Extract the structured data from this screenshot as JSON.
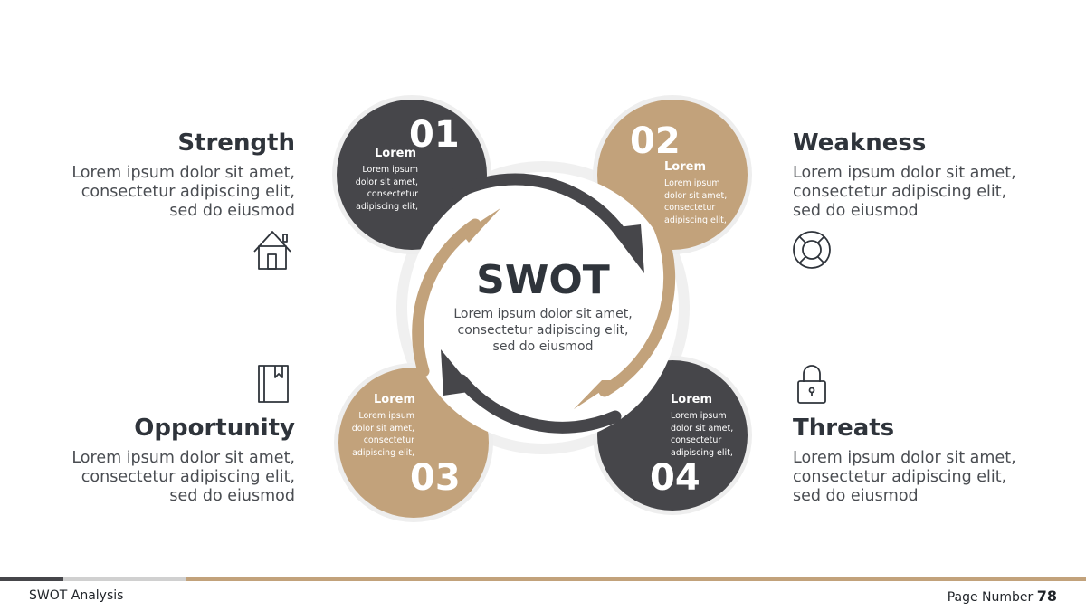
{
  "center": {
    "title": "SWOT",
    "lines": [
      "Lorem ipsum dolor sit amet,",
      "consectetur adipiscing elit,",
      "sed do eiusmod"
    ]
  },
  "sides": {
    "strength": {
      "title": "Strength",
      "lines": [
        "Lorem ipsum dolor sit amet,",
        "consectetur adipiscing elit,",
        "sed do eiusmod"
      ],
      "icon": "house-icon"
    },
    "weakness": {
      "title": "Weakness",
      "lines": [
        "Lorem ipsum dolor sit amet,",
        "consectetur adipiscing elit,",
        "sed do eiusmod"
      ],
      "icon": "lifebuoy-icon"
    },
    "opportunity": {
      "title": "Opportunity",
      "lines": [
        "Lorem ipsum dolor sit amet,",
        "consectetur adipiscing elit,",
        "sed do eiusmod"
      ],
      "icon": "book-icon"
    },
    "threats": {
      "title": "Threats",
      "lines": [
        "Lorem ipsum dolor sit amet,",
        "consectetur adipiscing elit,",
        "sed do eiusmod"
      ],
      "icon": "padlock-icon"
    }
  },
  "bubbles": [
    {
      "number": "01",
      "title": "Lorem",
      "lines": [
        "Lorem ipsum",
        "dolor sit amet,",
        "consectetur",
        "adipiscing elit,"
      ],
      "color": "#46464a"
    },
    {
      "number": "02",
      "title": "Lorem",
      "lines": [
        "Lorem ipsum",
        "dolor sit amet,",
        "consectetur",
        "adipiscing elit,"
      ],
      "color": "#c2a27b"
    },
    {
      "number": "03",
      "title": "Lorem",
      "lines": [
        "Lorem ipsum",
        "dolor sit amet,",
        "consectetur",
        "adipiscing elit,"
      ],
      "color": "#c2a27b"
    },
    {
      "number": "04",
      "title": "Lorem",
      "lines": [
        "Lorem ipsum",
        "dolor sit amet,",
        "consectetur",
        "adipiscing elit,"
      ],
      "color": "#46464a"
    }
  ],
  "footer": {
    "title": "SWOT Analysis",
    "page_label": "Page Number",
    "page_number": "78"
  },
  "colors": {
    "dark": "#46464a",
    "tan": "#c2a27b",
    "text": "#2f343b"
  }
}
